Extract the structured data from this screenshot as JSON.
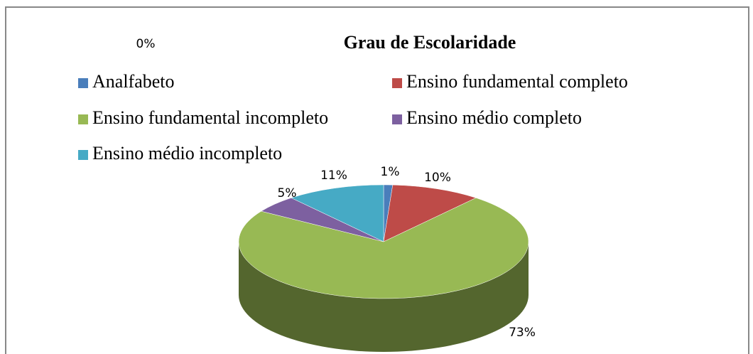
{
  "chart_data": {
    "type": "pie",
    "title": "Grau de Escolaridade",
    "annotation": "0%",
    "categories": [
      "Analfabeto",
      "Ensino fundamental completo",
      "Ensino fundamental incompleto",
      "Ensino médio completo",
      "Ensino médio incompleto"
    ],
    "values": [
      1,
      10,
      73,
      5,
      11
    ],
    "value_labels": [
      "1%",
      "10%",
      "73%",
      "5%",
      "11%"
    ],
    "colors": [
      "#4a7ebb",
      "#be4b48",
      "#98b954",
      "#7d60a0",
      "#46aac5"
    ],
    "legend": "top"
  }
}
